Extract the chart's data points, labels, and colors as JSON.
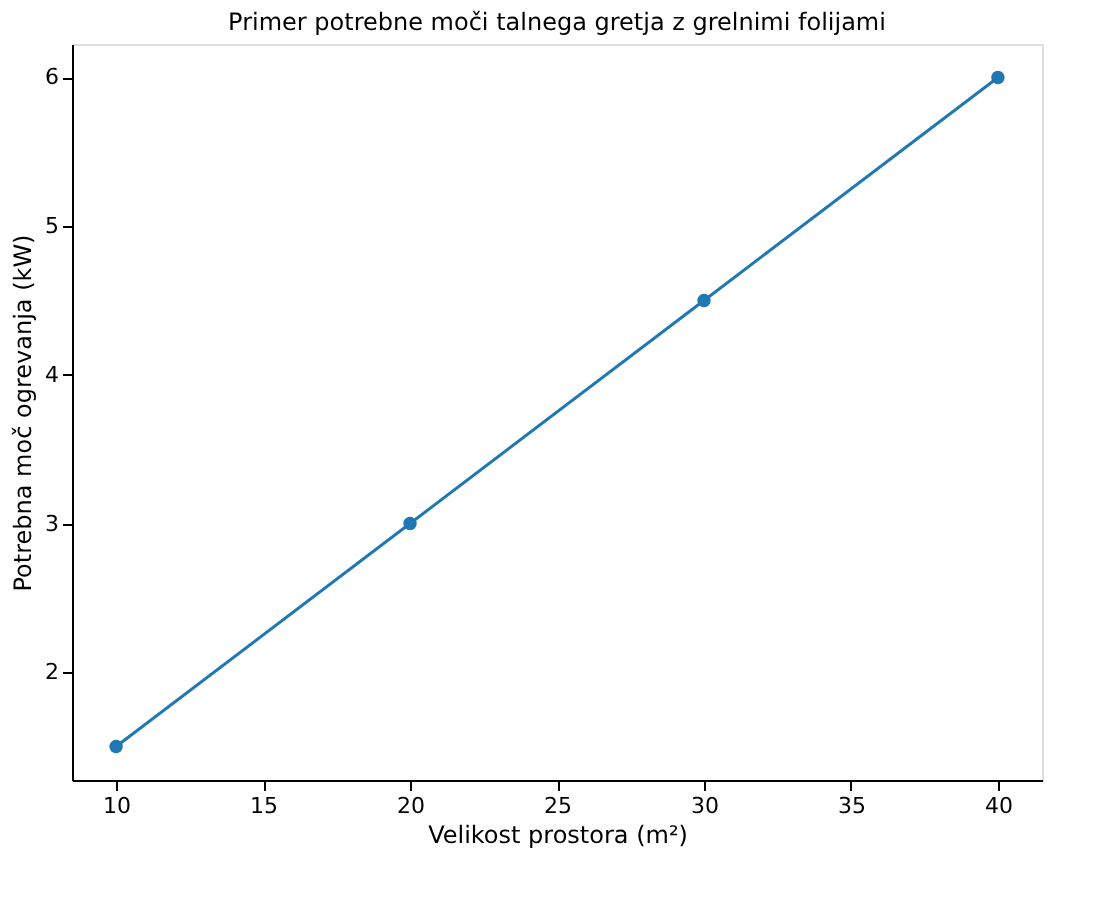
{
  "chart_data": {
    "type": "line",
    "title": "Primer potrebne moči talnega gretja z grelnimi folijami",
    "xlabel": "Velikost prostora (m²)",
    "ylabel": "Potrebna moč ogrevanja (kW)",
    "x": [
      10,
      20,
      30,
      40
    ],
    "series": [
      {
        "color": "#1f77b4",
        "values": [
          1.5,
          3,
          4.5,
          6
        ]
      }
    ],
    "xlim": [
      8.5,
      41.5
    ],
    "ylim": [
      1.275,
      6.225
    ],
    "xticks": [
      10,
      15,
      20,
      25,
      30,
      35,
      40
    ],
    "yticks": [
      2,
      3,
      4,
      5,
      6
    ],
    "marker": "circle",
    "line_style": "solid",
    "grid": false
  }
}
